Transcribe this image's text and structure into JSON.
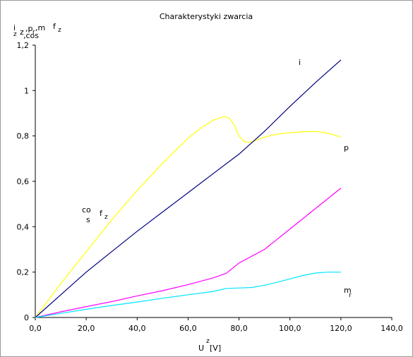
{
  "chart_data": {
    "type": "line",
    "title": "Charakterystyki zwarcia",
    "ylabel": "i z,p r,m f z z,cos",
    "xlabel": "U z [V]",
    "xlim": [
      0,
      140
    ],
    "ylim": [
      0,
      1.2
    ],
    "xticks": [
      0,
      20,
      40,
      60,
      80,
      100,
      120,
      140
    ],
    "xtick_labels": [
      "0,0",
      "20,0",
      "40,0",
      "60,0",
      "80,0",
      "100,0",
      "120,0",
      "140,0"
    ],
    "yticks": [
      0,
      0.2,
      0.4,
      0.6,
      0.8,
      1.0,
      1.2
    ],
    "ytick_labels": [
      "0",
      "0,2",
      "0,4",
      "0,6",
      "0,8",
      "1",
      "1,2"
    ],
    "grid": false,
    "series": [
      {
        "name": "cos f z",
        "color": "#ffff00",
        "label_parts": [
          "co",
          "s",
          "f",
          "z"
        ],
        "x": [
          0,
          10,
          20,
          30,
          40,
          50,
          60,
          65,
          70,
          74,
          76,
          78,
          80,
          82,
          84,
          86,
          90,
          95,
          100,
          105,
          110,
          115,
          120
        ],
        "y": [
          0,
          0.15,
          0.29,
          0.43,
          0.56,
          0.68,
          0.79,
          0.835,
          0.87,
          0.885,
          0.88,
          0.85,
          0.8,
          0.775,
          0.772,
          0.778,
          0.795,
          0.808,
          0.814,
          0.818,
          0.82,
          0.812,
          0.795
        ]
      },
      {
        "name": "i z",
        "color": "#000080",
        "label_parts": [
          "i"
        ],
        "x": [
          0,
          10,
          20,
          30,
          40,
          50,
          60,
          70,
          80,
          90,
          100,
          110,
          120
        ],
        "y": [
          0,
          0.1,
          0.2,
          0.29,
          0.38,
          0.465,
          0.55,
          0.635,
          0.72,
          0.82,
          0.93,
          1.035,
          1.135
        ]
      },
      {
        "name": "p r",
        "color": "#ff00ff",
        "label_parts": [
          "p"
        ],
        "x": [
          0,
          10,
          20,
          30,
          40,
          50,
          60,
          70,
          75,
          80,
          90,
          100,
          110,
          120
        ],
        "y": [
          0,
          0.025,
          0.048,
          0.07,
          0.095,
          0.118,
          0.145,
          0.175,
          0.195,
          0.24,
          0.3,
          0.39,
          0.48,
          0.57
        ]
      },
      {
        "name": "m r",
        "color": "#00e5ff",
        "label_parts": [
          "m",
          "r"
        ],
        "x": [
          0,
          10,
          20,
          30,
          40,
          50,
          60,
          70,
          75,
          80,
          85,
          90,
          95,
          100,
          105,
          110,
          115,
          120
        ],
        "y": [
          0,
          0.018,
          0.036,
          0.053,
          0.068,
          0.085,
          0.1,
          0.115,
          0.128,
          0.13,
          0.132,
          0.142,
          0.155,
          0.17,
          0.185,
          0.196,
          0.2,
          0.2
        ]
      }
    ]
  }
}
